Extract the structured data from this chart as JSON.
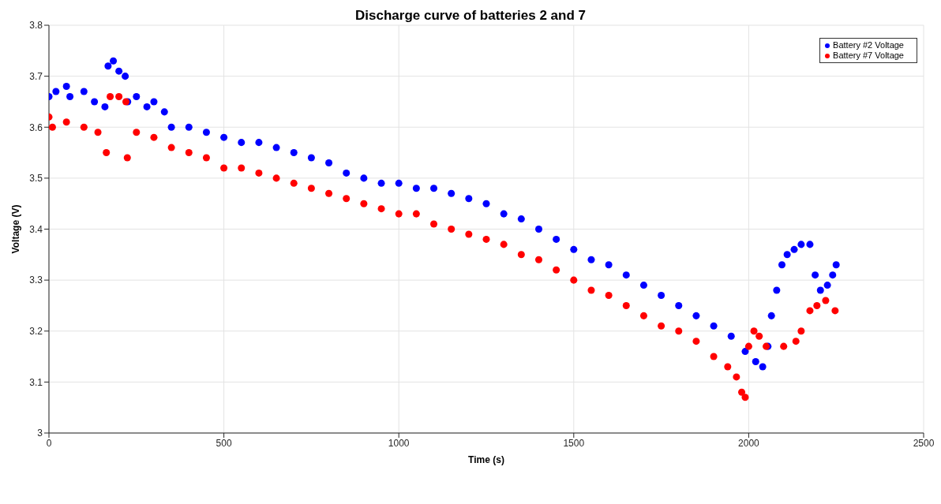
{
  "chart_data": {
    "type": "scatter",
    "title": "Discharge curve of batteries 2 and 7",
    "xlabel": "Time (s)",
    "ylabel": "Voltage (V)",
    "xlim": [
      0,
      2500
    ],
    "xticks": [
      0,
      500,
      1000,
      1500,
      2000,
      2500
    ],
    "ylim": [
      3,
      3.8
    ],
    "yticks": [
      3,
      3.1,
      3.2,
      3.3,
      3.4,
      3.5,
      3.6,
      3.7,
      3.8
    ],
    "grid": true,
    "legend": "top right",
    "marker": "circle",
    "series": [
      {
        "name": "Battery #2 Voltage",
        "color": "#0000ff",
        "x": [
          0,
          20,
          50,
          60,
          100,
          130,
          160,
          169,
          184,
          200,
          218,
          225,
          250,
          280,
          300,
          330,
          350,
          400,
          450,
          500,
          550,
          600,
          650,
          700,
          750,
          800,
          850,
          900,
          950,
          1000,
          1050,
          1100,
          1150,
          1200,
          1250,
          1300,
          1350,
          1400,
          1450,
          1500,
          1550,
          1600,
          1650,
          1700,
          1750,
          1800,
          1850,
          1900,
          1950,
          1990,
          2020,
          2040,
          2055,
          2065,
          2080,
          2095,
          2110,
          2130,
          2150,
          2175,
          2190,
          2205,
          2225,
          2240,
          2250
        ],
        "values": [
          3.66,
          3.67,
          3.68,
          3.66,
          3.67,
          3.65,
          3.64,
          3.72,
          3.73,
          3.71,
          3.7,
          3.65,
          3.66,
          3.64,
          3.65,
          3.63,
          3.6,
          3.6,
          3.59,
          3.58,
          3.57,
          3.57,
          3.56,
          3.55,
          3.54,
          3.53,
          3.51,
          3.5,
          3.49,
          3.49,
          3.48,
          3.48,
          3.47,
          3.46,
          3.45,
          3.43,
          3.42,
          3.4,
          3.38,
          3.36,
          3.34,
          3.33,
          3.31,
          3.29,
          3.27,
          3.25,
          3.23,
          3.21,
          3.19,
          3.16,
          3.14,
          3.13,
          3.17,
          3.23,
          3.28,
          3.33,
          3.35,
          3.36,
          3.37,
          3.37,
          3.31,
          3.28,
          3.29,
          3.31,
          3.33
        ]
      },
      {
        "name": "Battery #7 Voltage",
        "color": "#ff0000",
        "x": [
          0,
          10,
          50,
          100,
          140,
          164,
          175,
          200,
          220,
          224,
          250,
          300,
          350,
          400,
          450,
          500,
          550,
          600,
          650,
          700,
          750,
          800,
          850,
          900,
          950,
          1000,
          1050,
          1100,
          1150,
          1200,
          1250,
          1300,
          1350,
          1400,
          1450,
          1500,
          1550,
          1600,
          1650,
          1700,
          1750,
          1800,
          1850,
          1900,
          1940,
          1965,
          1980,
          1990,
          2000,
          2015,
          2030,
          2050,
          2100,
          2135,
          2150,
          2175,
          2195,
          2220,
          2247
        ],
        "values": [
          3.62,
          3.6,
          3.61,
          3.6,
          3.59,
          3.55,
          3.66,
          3.66,
          3.65,
          3.54,
          3.59,
          3.58,
          3.56,
          3.55,
          3.54,
          3.52,
          3.52,
          3.51,
          3.5,
          3.49,
          3.48,
          3.47,
          3.46,
          3.45,
          3.44,
          3.43,
          3.43,
          3.41,
          3.4,
          3.39,
          3.38,
          3.37,
          3.35,
          3.34,
          3.32,
          3.3,
          3.28,
          3.27,
          3.25,
          3.23,
          3.21,
          3.2,
          3.18,
          3.15,
          3.13,
          3.11,
          3.08,
          3.07,
          3.17,
          3.2,
          3.19,
          3.17,
          3.17,
          3.18,
          3.2,
          3.24,
          3.25,
          3.26,
          3.24
        ]
      }
    ]
  }
}
